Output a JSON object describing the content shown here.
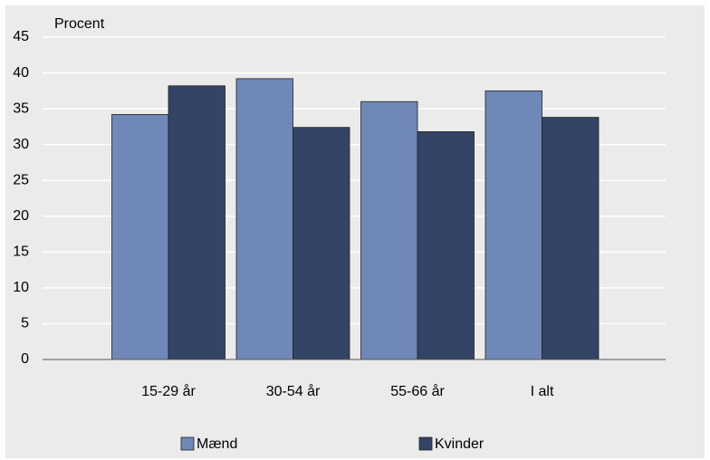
{
  "chart_data": {
    "type": "bar",
    "y_axis_label": "Procent",
    "categories": [
      "15-29 år",
      "30-54 år",
      "55-66 år",
      "I alt"
    ],
    "series": [
      {
        "name": "Mænd",
        "color": "#6f88b8",
        "values": [
          34.2,
          39.2,
          36.0,
          37.5
        ]
      },
      {
        "name": "Kvinder",
        "color": "#334466",
        "values": [
          38.2,
          32.4,
          31.8,
          33.8
        ]
      }
    ],
    "ylim": [
      0,
      45
    ],
    "yticks": [
      0,
      5,
      10,
      15,
      20,
      25,
      30,
      35,
      40,
      45
    ],
    "grid": true,
    "legend": "bottom"
  }
}
